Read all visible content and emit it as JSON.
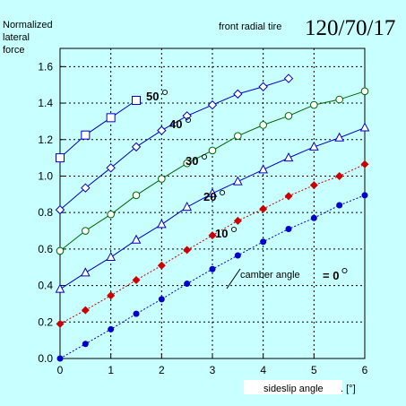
{
  "chart_data": {
    "type": "line",
    "title": "120/70/17",
    "subtitle": "front radial tire",
    "ylabel_lines": [
      "Normalized",
      "lateral",
      "force"
    ],
    "xlabel": "sideslip angle",
    "xunit": ". [°]",
    "xlim": [
      0,
      6
    ],
    "ylim": [
      0,
      1.7
    ],
    "x_ticks": [
      0,
      1,
      2,
      3,
      4,
      5,
      6
    ],
    "x_tick_labels": [
      "0",
      "1",
      "2",
      "3",
      "4",
      "5",
      "6"
    ],
    "y_ticks": [
      0,
      0.2,
      0.4,
      0.6,
      0.8,
      1.0,
      1.2,
      1.4,
      1.6
    ],
    "y_tick_labels": [
      "0.0",
      "0.2",
      "0.4",
      "0.6",
      "0.8",
      "1.0",
      "1.2",
      "1.4",
      "1.6"
    ],
    "legend_label": "camber angle",
    "series": [
      {
        "label": "= 0°",
        "label_text": "= 0",
        "color": "#0000cc",
        "line_color": "#0000cc",
        "marker": "circle-filled",
        "x": [
          0,
          0.5,
          1,
          1.5,
          2,
          2.5,
          3,
          3.5,
          4,
          4.5,
          5,
          5.5,
          6
        ],
        "y": [
          0.0,
          0.08,
          0.16,
          0.245,
          0.325,
          0.41,
          0.49,
          0.565,
          0.64,
          0.71,
          0.77,
          0.84,
          0.895
        ]
      },
      {
        "label": "10°",
        "label_text": "10",
        "color": "#cc0000",
        "line_color": "#cc0000",
        "marker": "diamond-filled",
        "x": [
          0,
          0.5,
          1,
          1.5,
          2,
          2.5,
          3,
          3.5,
          4,
          4.5,
          5,
          5.5,
          6
        ],
        "y": [
          0.19,
          0.265,
          0.345,
          0.43,
          0.51,
          0.595,
          0.675,
          0.755,
          0.82,
          0.89,
          0.95,
          1.0,
          1.065
        ]
      },
      {
        "label": "20°",
        "label_text": "20",
        "color": "#0000cc",
        "line_color": "#0000cc",
        "marker": "triangle-open",
        "x": [
          0,
          0.5,
          1,
          1.5,
          2,
          2.5,
          3,
          3.5,
          4,
          4.5,
          5,
          5.5,
          6
        ],
        "y": [
          0.38,
          0.47,
          0.555,
          0.65,
          0.735,
          0.83,
          0.905,
          0.97,
          1.035,
          1.1,
          1.16,
          1.21,
          1.265
        ]
      },
      {
        "label": "30°",
        "label_text": "30",
        "color": "#006600",
        "line_color": "#006600",
        "marker": "circle-open",
        "x": [
          0,
          0.5,
          1,
          1.5,
          2,
          2.5,
          3,
          3.5,
          4,
          4.5,
          5,
          5.5,
          6
        ],
        "y": [
          0.59,
          0.7,
          0.79,
          0.895,
          0.985,
          1.07,
          1.14,
          1.22,
          1.28,
          1.33,
          1.39,
          1.42,
          1.465
        ]
      },
      {
        "label": "40°",
        "label_text": "40",
        "color": "#0000cc",
        "line_color": "#0000cc",
        "marker": "diamond-open",
        "x": [
          0,
          0.5,
          1,
          1.5,
          2,
          2.5,
          3,
          3.5,
          4,
          4.5
        ],
        "y": [
          0.815,
          0.935,
          1.045,
          1.16,
          1.25,
          1.33,
          1.39,
          1.45,
          1.49,
          1.535
        ]
      },
      {
        "label": "50°",
        "label_text": "50",
        "color": "#0000cc",
        "line_color": "#0000cc",
        "marker": "square-open",
        "x": [
          0,
          0.5,
          1,
          1.5
        ],
        "y": [
          1.1,
          1.225,
          1.32,
          1.415
        ]
      }
    ],
    "grid": true,
    "legend_position": "bottom-right"
  }
}
